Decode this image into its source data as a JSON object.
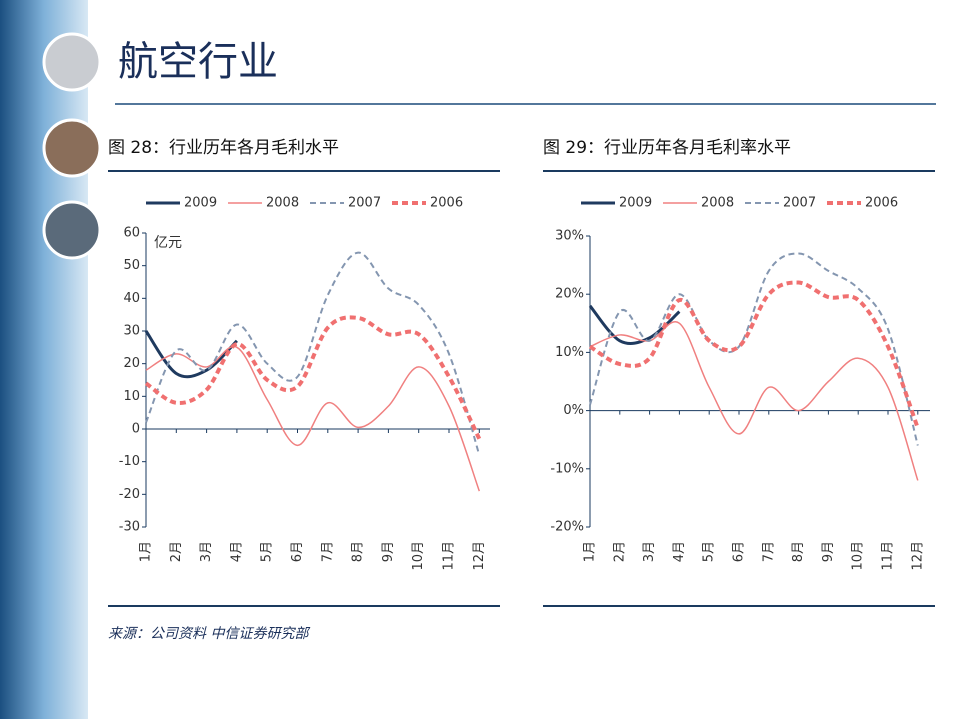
{
  "title": "航空行业",
  "source": "来源：公司资料  中信证券研究部",
  "chart_data": [
    {
      "type": "line",
      "title": "图 28：行业历年各月毛利水平",
      "unit": "亿元",
      "categories": [
        "1月",
        "2月",
        "3月",
        "4月",
        "5月",
        "6月",
        "7月",
        "8月",
        "9月",
        "10月",
        "11月",
        "12月"
      ],
      "ylim": [
        -30,
        60
      ],
      "yticks": [
        -30,
        -20,
        -10,
        0,
        10,
        20,
        30,
        40,
        50,
        60
      ],
      "series": [
        {
          "name": "2009",
          "color": "#1f3a5f",
          "width": 3,
          "dash": false,
          "values": [
            30,
            17,
            18,
            27,
            null,
            null,
            null,
            null,
            null,
            null,
            null,
            null
          ]
        },
        {
          "name": "2008",
          "color": "#f08080",
          "width": 1.5,
          "dash": false,
          "values": [
            18,
            23,
            19,
            25,
            9,
            -5,
            8,
            0.5,
            7,
            19,
            7,
            -19
          ]
        },
        {
          "name": "2007",
          "color": "#8496b0",
          "width": 2,
          "dash": true,
          "values": [
            2,
            24,
            18,
            32,
            20,
            16,
            41,
            54,
            43,
            38,
            23,
            -8
          ]
        },
        {
          "name": "2006",
          "color": "#f07070",
          "width": 4,
          "dash": true,
          "values": [
            14,
            8,
            12,
            26,
            15,
            13,
            31,
            34,
            29,
            29,
            16,
            -3
          ]
        }
      ]
    },
    {
      "type": "line",
      "title": "图 29：行业历年各月毛利率水平",
      "categories": [
        "1月",
        "2月",
        "3月",
        "4月",
        "5月",
        "6月",
        "7月",
        "8月",
        "9月",
        "10月",
        "11月",
        "12月"
      ],
      "ylim": [
        -20,
        30
      ],
      "yticks": [
        {
          "value": -20,
          "label": "-20%"
        },
        {
          "value": -10,
          "label": "-10%"
        },
        {
          "value": 0,
          "label": "0%"
        },
        {
          "value": 10,
          "label": "10%"
        },
        {
          "value": 20,
          "label": "20%"
        },
        {
          "value": 30,
          "label": "30%"
        }
      ],
      "series": [
        {
          "name": "2009",
          "color": "#1f3a5f",
          "width": 3,
          "dash": false,
          "values": [
            18,
            12,
            12.5,
            17,
            null,
            null,
            null,
            null,
            null,
            null,
            null,
            null
          ]
        },
        {
          "name": "2008",
          "color": "#f08080",
          "width": 1.5,
          "dash": false,
          "values": [
            11,
            13,
            12,
            15,
            4,
            -4,
            4,
            0,
            5,
            9,
            4,
            -12
          ]
        },
        {
          "name": "2007",
          "color": "#8496b0",
          "width": 2,
          "dash": true,
          "values": [
            1,
            17,
            12,
            20,
            12,
            11,
            24,
            27,
            24,
            21,
            14,
            -6
          ]
        },
        {
          "name": "2006",
          "color": "#f07070",
          "width": 4,
          "dash": true,
          "values": [
            11,
            8,
            9,
            19,
            12,
            11,
            20,
            22,
            19.5,
            19,
            11,
            -3
          ]
        }
      ]
    }
  ]
}
